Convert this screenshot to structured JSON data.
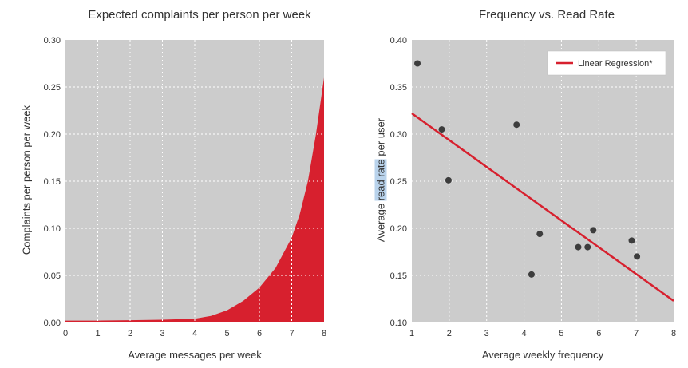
{
  "colors": {
    "plot_background": "#cccccc",
    "grid": "#ffffff",
    "accent": "#d7202e",
    "point": "#3d3d3d"
  },
  "chart_data": [
    {
      "type": "area",
      "title": "Expected complaints per person per week",
      "xlabel": "Average messages per week",
      "ylabel": "Complaints per person per week",
      "xlim": [
        0,
        8
      ],
      "ylim": [
        0,
        0.3
      ],
      "x_ticks": [
        "0",
        "1",
        "2",
        "3",
        "4",
        "5",
        "6",
        "7",
        "8"
      ],
      "y_ticks": [
        "0.00",
        "0.05",
        "0.10",
        "0.15",
        "0.20",
        "0.25",
        "0.30"
      ],
      "grid": true,
      "x": [
        0,
        1,
        2,
        3,
        4,
        4.5,
        5,
        5.5,
        6,
        6.5,
        7,
        7.25,
        7.5,
        7.75,
        8
      ],
      "y": [
        0.002,
        0.002,
        0.0025,
        0.003,
        0.004,
        0.007,
        0.013,
        0.023,
        0.037,
        0.058,
        0.09,
        0.115,
        0.15,
        0.2,
        0.26
      ]
    },
    {
      "type": "scatter",
      "title": "Frequency vs. Read Rate",
      "xlabel": "Average weekly frequency",
      "ylabel_parts": [
        "Average ",
        "read rate",
        " per user"
      ],
      "xlim": [
        1,
        8
      ],
      "ylim": [
        0.1,
        0.4
      ],
      "x_ticks": [
        "1",
        "2",
        "3",
        "4",
        "5",
        "6",
        "7",
        "8"
      ],
      "y_ticks": [
        "0.10",
        "0.15",
        "0.20",
        "0.25",
        "0.30",
        "0.35",
        "0.40"
      ],
      "grid": true,
      "legend_placement": "top-right",
      "series": [
        {
          "name": "",
          "points": [
            {
              "x": 1.15,
              "y": 0.375
            },
            {
              "x": 1.8,
              "y": 0.305
            },
            {
              "x": 1.98,
              "y": 0.251
            },
            {
              "x": 3.8,
              "y": 0.31
            },
            {
              "x": 4.2,
              "y": 0.151
            },
            {
              "x": 4.42,
              "y": 0.194
            },
            {
              "x": 5.45,
              "y": 0.18
            },
            {
              "x": 5.7,
              "y": 0.18
            },
            {
              "x": 5.85,
              "y": 0.198
            },
            {
              "x": 6.88,
              "y": 0.187
            },
            {
              "x": 7.02,
              "y": 0.17
            }
          ]
        },
        {
          "name": "Linear Regression*",
          "type": "line",
          "x": [
            1,
            8
          ],
          "y": [
            0.322,
            0.123
          ]
        }
      ]
    }
  ]
}
